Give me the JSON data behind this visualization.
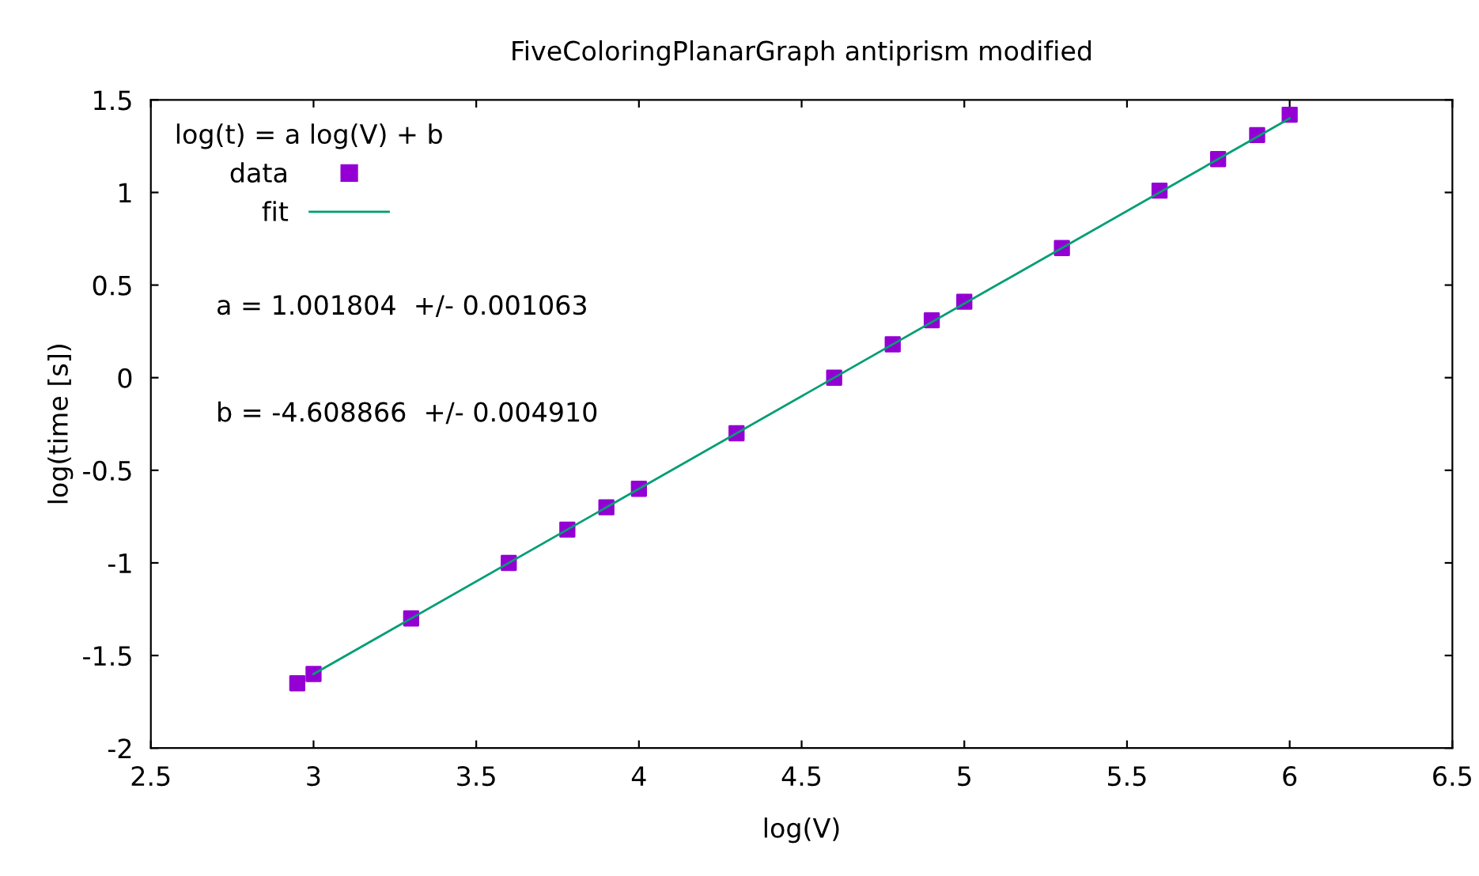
{
  "chart_data": {
    "type": "scatter",
    "title": "FiveColoringPlanarGraph antiprism modified",
    "xlabel": "log(V)",
    "ylabel": "log(time [s])",
    "legend_title": "log(t) = a log(V) + b",
    "series": [
      {
        "name": "data",
        "color": "#9400d3",
        "marker": "square",
        "x": [
          2.95,
          3.0,
          3.3,
          3.6,
          3.78,
          3.9,
          4.0,
          4.3,
          4.6,
          4.78,
          4.9,
          5.0,
          5.3,
          5.6,
          5.78,
          5.9,
          6.0
        ],
        "values": [
          -1.65,
          -1.6,
          -1.3,
          -1.0,
          -0.82,
          -0.7,
          -0.6,
          -0.3,
          0.0,
          0.18,
          0.31,
          0.41,
          0.7,
          1.01,
          1.18,
          1.31,
          1.42
        ]
      },
      {
        "name": "fit",
        "type": "line",
        "color": "#009e73",
        "line_style": "solid",
        "x": [
          3.0,
          6.0
        ],
        "values": [
          -1.6,
          1.4
        ]
      }
    ],
    "annotations": [
      "a = 1.001804  +/- 0.001063",
      "b = -4.608866  +/- 0.004910"
    ],
    "xlim": [
      2.5,
      6.5
    ],
    "xticks": [
      2.5,
      3,
      3.5,
      4,
      4.5,
      5,
      5.5,
      6,
      6.5
    ],
    "ylim": [
      -2,
      1.5
    ],
    "yticks": [
      -2,
      -1.5,
      -1,
      -0.5,
      0,
      0.5,
      1,
      1.5
    ],
    "grid": false,
    "legend": "top left"
  }
}
